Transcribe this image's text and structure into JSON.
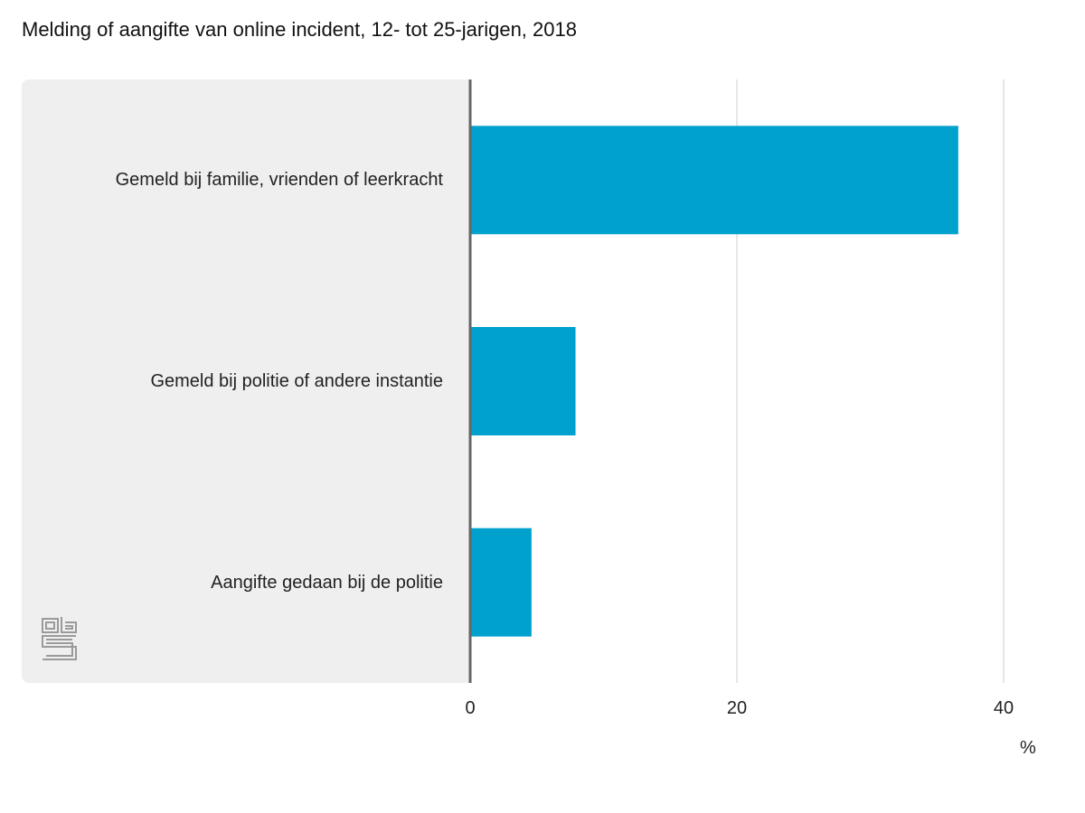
{
  "title": "Melding of aangifte van online incident, 12- tot 25-jarigen, 2018",
  "colors": {
    "bar": "#00a1cd",
    "panel": "#efefef",
    "axis": "#666666",
    "grid": "#cccccc"
  },
  "logo_icon": "cbs-logo-icon",
  "chart_data": {
    "type": "bar",
    "orientation": "horizontal",
    "title": "Melding of aangifte van online incident, 12- tot 25-jarigen, 2018",
    "categories": [
      "Gemeld bij familie, vrienden of leerkracht",
      "Gemeld bij politie of andere instantie",
      "Aangifte gedaan bij de politie"
    ],
    "values": [
      36.6,
      7.9,
      4.6
    ],
    "xlim": [
      0,
      40
    ],
    "xticks": [
      "0",
      "20",
      "40"
    ],
    "xlabel": "%",
    "grid": true
  }
}
